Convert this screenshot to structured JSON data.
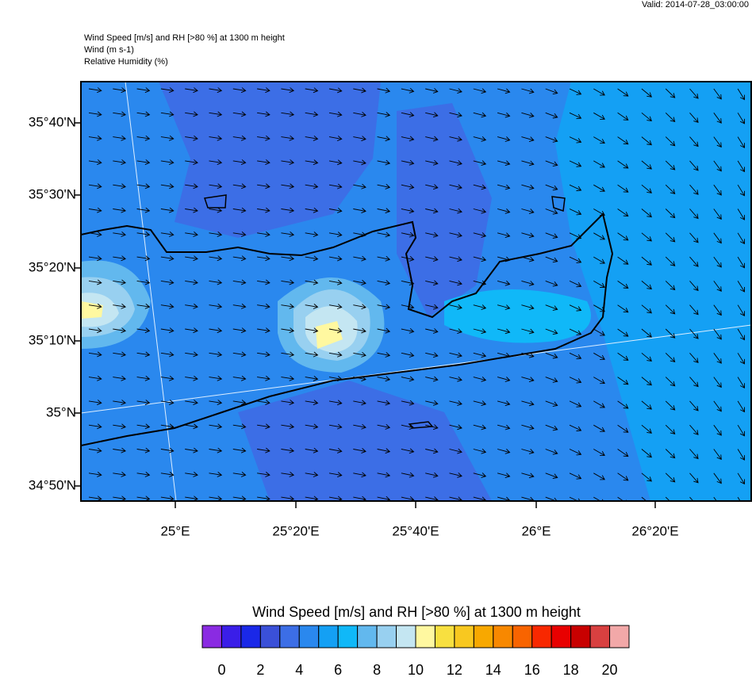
{
  "header": {
    "valid": "Valid: 2014-07-28_03:00:00",
    "lines": [
      "Wind Speed [m/s] and RH [>80 %] at 1300 m height",
      "Wind   (m s-1)",
      "Relative Humidity   (%)"
    ]
  },
  "map": {
    "lat_labels": [
      "35°40'N",
      "35°30'N",
      "35°20'N",
      "35°10'N",
      "35°N",
      "34°50'N"
    ],
    "lon_labels": [
      "25°E",
      "25°20'E",
      "25°40'E",
      "26°E",
      "26°20'E"
    ]
  },
  "colorbar": {
    "title": "Wind Speed [m/s] and RH [>80 %] at 1300 m height",
    "colors": [
      "#8a2be2",
      "#3a1ee8",
      "#1a28e8",
      "#3a50d8",
      "#3c6ee6",
      "#2a88ee",
      "#14a0f4",
      "#10b8f8",
      "#62b8ee",
      "#98d0f0",
      "#c4e6f2",
      "#fff8a0",
      "#f8e040",
      "#f8c820",
      "#f8a800",
      "#f88800",
      "#f86400",
      "#f82800",
      "#e80000",
      "#c80000",
      "#d84040",
      "#f2a8a8"
    ],
    "labels": [
      "0",
      "2",
      "4",
      "6",
      "8",
      "10",
      "12",
      "14",
      "16",
      "18",
      "20"
    ]
  }
}
